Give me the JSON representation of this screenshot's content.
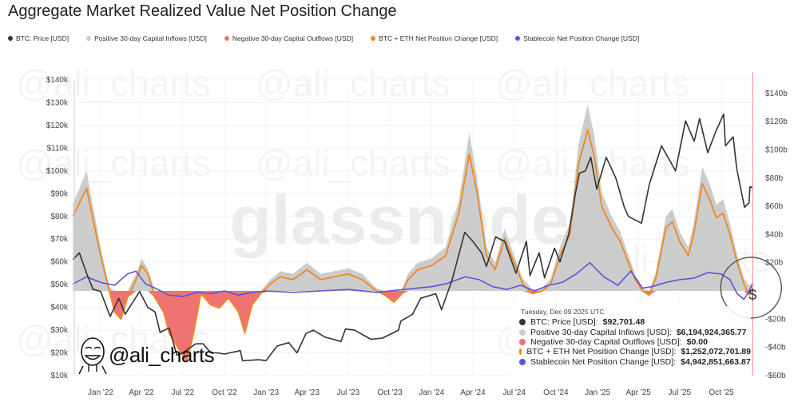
{
  "title": "Aggregate Market Realized Value Net Position Change",
  "watermark": "glassnode",
  "author_watermark": "@ali_charts",
  "legend": [
    {
      "label": "BTC: Price [USD]",
      "color": "#333333"
    },
    {
      "label": "Positive 30-day Capital Inflows [USD]",
      "color": "#cccccc"
    },
    {
      "label": "Negative 30-day Capital Outflows [USD]",
      "color": "#f07373"
    },
    {
      "label": "BTC + ETH Net Position Change [USD]",
      "color": "#f0871e"
    },
    {
      "label": "Stablecoin Net Position Change [USD]",
      "color": "#5a55d8"
    }
  ],
  "tooltip": {
    "date": "Tuesday, Dec 09 2025 UTC",
    "rows": [
      {
        "label": "BTC: Price [USD]:",
        "value": "$92,701.48",
        "color": "#333333"
      },
      {
        "label": "Positive 30-day Capital Inflows [USD]:",
        "value": "$6,194,924,365.77",
        "color": "#cccccc"
      },
      {
        "label": "Negative 30-day Capital Outflows [USD]:",
        "value": "$0.00",
        "color": "#f07373"
      },
      {
        "label": "BTC + ETH Net Position Change [USD]:",
        "value": "$1,252,072,701.89",
        "color": "#f0871e"
      },
      {
        "label": "Stablecoin Net Position Change [USD]:",
        "value": "$4,942,851,663.87",
        "color": "#5a55d8"
      }
    ]
  },
  "annotation_symbol": "$",
  "chart_data": {
    "type": "line",
    "title": "Aggregate Market Realized Value Net Position Change",
    "x_range": [
      "2021-11-01",
      "2025-12-20"
    ],
    "x_ticks": [
      "Jan '22",
      "Apr '22",
      "Jul '22",
      "Oct '22",
      "Jan '23",
      "Apr '23",
      "Jul '23",
      "Oct '23",
      "Jan '24",
      "Apr '24",
      "Jul '24",
      "Oct '24",
      "Jan '25",
      "Apr '25",
      "Jul '25",
      "Oct '25"
    ],
    "x_tick_dates": [
      "2022-01-01",
      "2022-04-01",
      "2022-07-01",
      "2022-10-01",
      "2023-01-01",
      "2023-04-01",
      "2023-07-01",
      "2023-10-01",
      "2024-01-01",
      "2024-04-01",
      "2024-07-01",
      "2024-10-01",
      "2025-01-01",
      "2025-04-01",
      "2025-07-01",
      "2025-10-01"
    ],
    "y_left": {
      "unit": "USD thousands",
      "range": [
        10,
        140
      ],
      "ticks": [
        "$10k",
        "$20k",
        "$30k",
        "$40k",
        "$50k",
        "$60k",
        "$70k",
        "$80k",
        "$90k",
        "$100k",
        "$110k",
        "$120k",
        "$130k",
        "$140k"
      ]
    },
    "y_right": {
      "unit": "USD billions",
      "range": [
        -60,
        140
      ],
      "ticks": [
        "$140b",
        "$120b",
        "$100b",
        "$80b",
        "$60b",
        "$40b",
        "$20b",
        "",
        "-$20b",
        "-$40b",
        "-$60b"
      ],
      "tick_values": [
        140,
        120,
        100,
        80,
        60,
        40,
        20,
        0,
        -20,
        -40,
        -60
      ]
    },
    "grid": true,
    "legend_position": "top-left",
    "cursor_date": "2025-12-09",
    "btc_price": {
      "name": "BTC: Price [USD]",
      "axis": "left",
      "color": "#333333",
      "points": [
        [
          "2021-11-01",
          61
        ],
        [
          "2021-11-15",
          64
        ],
        [
          "2021-12-01",
          55
        ],
        [
          "2021-12-15",
          48
        ],
        [
          "2022-01-01",
          47
        ],
        [
          "2022-01-22",
          36
        ],
        [
          "2022-02-10",
          44
        ],
        [
          "2022-02-24",
          37
        ],
        [
          "2022-03-28",
          47
        ],
        [
          "2022-04-15",
          40
        ],
        [
          "2022-05-01",
          38
        ],
        [
          "2022-05-12",
          29
        ],
        [
          "2022-06-01",
          31
        ],
        [
          "2022-06-18",
          19
        ],
        [
          "2022-07-01",
          20
        ],
        [
          "2022-07-30",
          24
        ],
        [
          "2022-08-15",
          24
        ],
        [
          "2022-09-01",
          20
        ],
        [
          "2022-09-15",
          20
        ],
        [
          "2022-10-01",
          19.5
        ],
        [
          "2022-11-05",
          21
        ],
        [
          "2022-11-10",
          16.5
        ],
        [
          "2022-12-15",
          17
        ],
        [
          "2023-01-01",
          16.6
        ],
        [
          "2023-01-25",
          23
        ],
        [
          "2023-02-20",
          24.5
        ],
        [
          "2023-03-10",
          20
        ],
        [
          "2023-03-30",
          28.5
        ],
        [
          "2023-04-15",
          30
        ],
        [
          "2023-05-10",
          27
        ],
        [
          "2023-06-15",
          25
        ],
        [
          "2023-06-25",
          30.5
        ],
        [
          "2023-07-15",
          30
        ],
        [
          "2023-08-20",
          26
        ],
        [
          "2023-09-15",
          26.5
        ],
        [
          "2023-10-20",
          30
        ],
        [
          "2023-10-25",
          34
        ],
        [
          "2023-11-20",
          37
        ],
        [
          "2023-12-08",
          44
        ],
        [
          "2024-01-10",
          46
        ],
        [
          "2024-01-23",
          39
        ],
        [
          "2024-02-15",
          52
        ],
        [
          "2024-03-14",
          73
        ],
        [
          "2024-04-01",
          69
        ],
        [
          "2024-04-20",
          64
        ],
        [
          "2024-05-01",
          58
        ],
        [
          "2024-05-21",
          71
        ],
        [
          "2024-06-10",
          69
        ],
        [
          "2024-07-05",
          55
        ],
        [
          "2024-07-28",
          69
        ],
        [
          "2024-08-05",
          54
        ],
        [
          "2024-08-25",
          64
        ],
        [
          "2024-09-06",
          53
        ],
        [
          "2024-09-28",
          66
        ],
        [
          "2024-10-10",
          60
        ],
        [
          "2024-10-29",
          72
        ],
        [
          "2024-11-13",
          90
        ],
        [
          "2024-11-22",
          99
        ],
        [
          "2024-12-05",
          100
        ],
        [
          "2024-12-17",
          106
        ],
        [
          "2024-12-30",
          92
        ],
        [
          "2025-01-20",
          106
        ],
        [
          "2025-02-10",
          97
        ],
        [
          "2025-03-01",
          84
        ],
        [
          "2025-03-10",
          80
        ],
        [
          "2025-04-08",
          77
        ],
        [
          "2025-04-25",
          94
        ],
        [
          "2025-05-22",
          111
        ],
        [
          "2025-06-22",
          100
        ],
        [
          "2025-07-14",
          122
        ],
        [
          "2025-08-02",
          113
        ],
        [
          "2025-08-14",
          123
        ],
        [
          "2025-09-01",
          108
        ],
        [
          "2025-09-18",
          117
        ],
        [
          "2025-10-06",
          125
        ],
        [
          "2025-10-10",
          111
        ],
        [
          "2025-10-27",
          115
        ],
        [
          "2025-11-04",
          101
        ],
        [
          "2025-11-21",
          84
        ],
        [
          "2025-12-01",
          86
        ],
        [
          "2025-12-03",
          93
        ],
        [
          "2025-12-09",
          92.7
        ]
      ]
    },
    "net_flow_dates": [
      "2021-11-01",
      "2021-12-01",
      "2022-01-01",
      "2022-01-20",
      "2022-02-01",
      "2022-02-15",
      "2022-03-01",
      "2022-03-20",
      "2022-04-01",
      "2022-04-15",
      "2022-05-01",
      "2022-05-20",
      "2022-06-01",
      "2022-06-20",
      "2022-07-10",
      "2022-07-25",
      "2022-08-10",
      "2022-09-01",
      "2022-09-20",
      "2022-10-10",
      "2022-11-01",
      "2022-11-15",
      "2022-12-01",
      "2022-12-20",
      "2023-01-10",
      "2023-02-01",
      "2023-03-01",
      "2023-04-01",
      "2023-05-01",
      "2023-06-01",
      "2023-07-01",
      "2023-08-01",
      "2023-09-01",
      "2023-09-20",
      "2023-10-10",
      "2023-10-25",
      "2023-11-10",
      "2023-12-01",
      "2024-01-01",
      "2024-02-01",
      "2024-03-01",
      "2024-03-24",
      "2024-04-10",
      "2024-05-01",
      "2024-05-20",
      "2024-06-10",
      "2024-07-01",
      "2024-07-20",
      "2024-08-10",
      "2024-09-01",
      "2024-09-20",
      "2024-10-10",
      "2024-11-01",
      "2024-11-20",
      "2024-12-10",
      "2024-12-25",
      "2025-01-10",
      "2025-02-01",
      "2025-02-20",
      "2025-03-10",
      "2025-03-25",
      "2025-04-10",
      "2025-04-25",
      "2025-05-10",
      "2025-06-01",
      "2025-06-15",
      "2025-07-01",
      "2025-07-20",
      "2025-08-01",
      "2025-08-20",
      "2025-09-05",
      "2025-09-20",
      "2025-10-05",
      "2025-10-20",
      "2025-11-05",
      "2025-11-20",
      "2025-12-01",
      "2025-12-09"
    ],
    "positive_inflows": {
      "name": "Positive 30-day Capital Inflows [USD]",
      "axis": "right",
      "color": "#cccccc",
      "values": [
        62,
        85,
        31,
        3,
        0,
        0,
        0,
        12,
        23,
        16,
        0,
        0,
        0,
        0,
        0,
        0,
        0,
        0,
        0,
        0,
        0,
        0,
        0,
        0,
        8,
        14,
        12,
        20,
        12,
        14,
        16,
        12,
        2,
        0,
        0,
        0,
        12,
        20,
        23,
        31,
        64,
        112,
        81,
        31,
        20,
        44,
        25,
        9,
        1,
        2,
        9,
        31,
        48,
        104,
        132,
        110,
        70,
        53,
        42,
        25,
        12,
        2,
        0,
        14,
        53,
        58,
        42,
        31,
        48,
        88,
        76,
        61,
        65,
        48,
        25,
        9,
        4,
        6.19
      ]
    },
    "negative_outflows": {
      "name": "Negative 30-day Capital Outflows [USD]",
      "axis": "right",
      "color": "#f07373",
      "values": [
        0,
        0,
        0,
        0,
        -15,
        -20,
        -5,
        0,
        0,
        0,
        -5,
        -15,
        -30,
        -40,
        -50,
        -30,
        -2,
        -10,
        -12,
        -5,
        -15,
        -30,
        -10,
        -2,
        0,
        0,
        0,
        0,
        0,
        0,
        0,
        0,
        0,
        -3,
        -8,
        -3,
        0,
        0,
        0,
        0,
        0,
        0,
        0,
        0,
        0,
        0,
        0,
        0,
        -2,
        0,
        0,
        0,
        0,
        0,
        0,
        0,
        0,
        0,
        0,
        0,
        0,
        0,
        -3,
        0,
        0,
        0,
        0,
        0,
        0,
        0,
        0,
        0,
        0,
        0,
        0,
        0,
        -3,
        0
      ]
    },
    "btc_eth_net": {
      "name": "BTC + ETH Net Position Change [USD]",
      "axis": "right",
      "color": "#f0871e",
      "values": [
        53,
        73,
        25,
        0,
        -15,
        -20,
        -5,
        8,
        18,
        12,
        -5,
        -15,
        -30,
        -40,
        -50,
        -30,
        -2,
        -10,
        -12,
        -5,
        -15,
        -30,
        -10,
        -2,
        5,
        10,
        8,
        15,
        8,
        10,
        12,
        8,
        0,
        -3,
        -8,
        -3,
        8,
        15,
        18,
        25,
        55,
        97,
        70,
        25,
        15,
        37,
        20,
        5,
        -2,
        0,
        5,
        25,
        40,
        90,
        114,
        95,
        60,
        45,
        35,
        20,
        8,
        0,
        -3,
        10,
        45,
        49,
        35,
        25,
        40,
        76,
        65,
        52,
        55,
        40,
        20,
        5,
        -3,
        1.25
      ]
    },
    "stablecoin_net": {
      "name": "Stablecoin Net Position Change [USD]",
      "axis": "right",
      "color": "#5a55d8",
      "points": [
        [
          "2021-11-01",
          5
        ],
        [
          "2021-12-01",
          10
        ],
        [
          "2022-01-01",
          6
        ],
        [
          "2022-02-01",
          4
        ],
        [
          "2022-03-01",
          12
        ],
        [
          "2022-03-20",
          14
        ],
        [
          "2022-04-10",
          5
        ],
        [
          "2022-05-01",
          2
        ],
        [
          "2022-06-01",
          -3
        ],
        [
          "2022-07-01",
          -4
        ],
        [
          "2022-08-01",
          -1
        ],
        [
          "2022-09-01",
          -2
        ],
        [
          "2022-10-01",
          0
        ],
        [
          "2022-11-01",
          -3
        ],
        [
          "2022-12-01",
          -1
        ],
        [
          "2023-01-01",
          0
        ],
        [
          "2023-03-01",
          -1
        ],
        [
          "2023-05-01",
          0
        ],
        [
          "2023-07-01",
          1
        ],
        [
          "2023-09-01",
          -1
        ],
        [
          "2023-11-01",
          1
        ],
        [
          "2024-01-01",
          3
        ],
        [
          "2024-02-01",
          5
        ],
        [
          "2024-03-15",
          10
        ],
        [
          "2024-04-15",
          8
        ],
        [
          "2024-05-15",
          3
        ],
        [
          "2024-06-15",
          1
        ],
        [
          "2024-07-15",
          4
        ],
        [
          "2024-08-15",
          0
        ],
        [
          "2024-09-15",
          4
        ],
        [
          "2024-10-15",
          6
        ],
        [
          "2024-11-15",
          12
        ],
        [
          "2024-12-15",
          20
        ],
        [
          "2025-01-15",
          10
        ],
        [
          "2025-02-15",
          4
        ],
        [
          "2025-03-15",
          14
        ],
        [
          "2025-04-10",
          2
        ],
        [
          "2025-05-01",
          3
        ],
        [
          "2025-06-01",
          6
        ],
        [
          "2025-07-01",
          8
        ],
        [
          "2025-08-01",
          9
        ],
        [
          "2025-09-01",
          13
        ],
        [
          "2025-10-01",
          12
        ],
        [
          "2025-10-20",
          8
        ],
        [
          "2025-11-05",
          -2
        ],
        [
          "2025-11-20",
          -6
        ],
        [
          "2025-12-01",
          0
        ],
        [
          "2025-12-09",
          4.94
        ]
      ]
    }
  }
}
